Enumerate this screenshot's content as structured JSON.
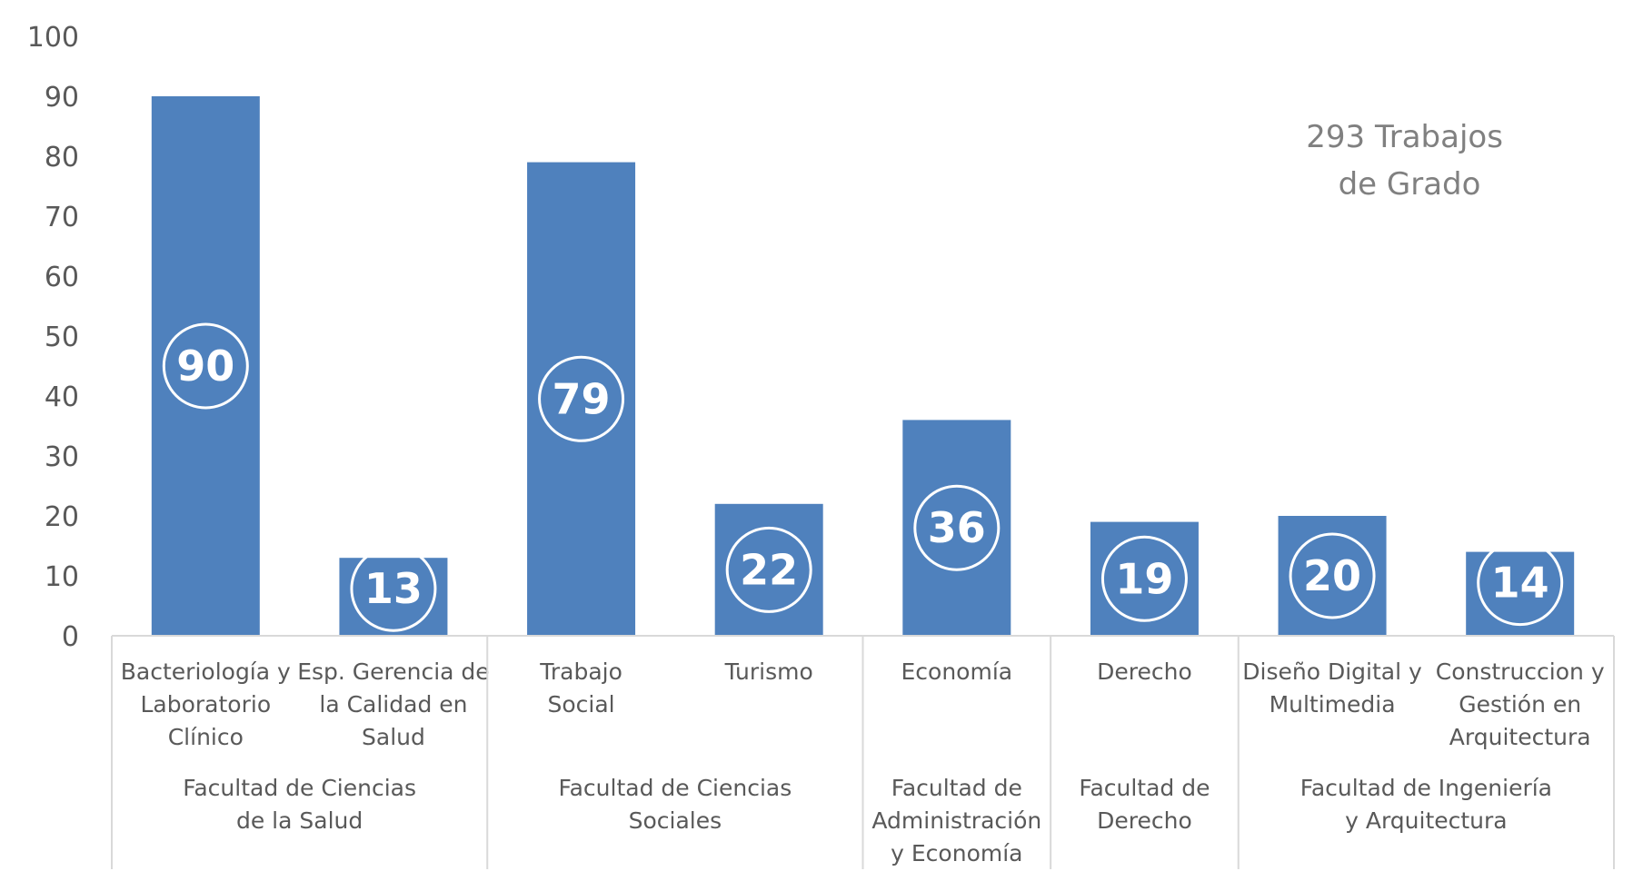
{
  "chart_data": {
    "type": "bar",
    "categories": [
      [
        "Bacteriología y",
        "Laboratorio",
        "Clínico"
      ],
      [
        "Esp. Gerencia de",
        "la Calidad en",
        "Salud"
      ],
      [
        "Trabajo",
        "Social"
      ],
      [
        "Turismo"
      ],
      [
        "Economía"
      ],
      [
        "Derecho"
      ],
      [
        "Diseño Digital y",
        "Multimedia"
      ],
      [
        "Construccion y",
        "Gestión en",
        "Arquitectura"
      ]
    ],
    "groups": [
      {
        "lines": [
          "Facultad de Ciencias",
          "de la Salud"
        ],
        "span": 2
      },
      {
        "lines": [
          "Facultad de  Ciencias",
          "Sociales"
        ],
        "span": 2
      },
      {
        "lines": [
          "Facultad de",
          "Administración",
          "y Economía"
        ],
        "span": 1
      },
      {
        "lines": [
          "Facultad de",
          "Derecho"
        ],
        "span": 1
      },
      {
        "lines": [
          "Facultad de Ingeniería",
          "y Arquitectura"
        ],
        "span": 2
      }
    ],
    "values": [
      90,
      13,
      79,
      22,
      36,
      19,
      20,
      14
    ],
    "data_labels": [
      "90",
      "13",
      "79",
      "22",
      "36",
      "19",
      "20",
      "14"
    ],
    "ylim": [
      0,
      100
    ],
    "yticks": [
      0,
      10,
      20,
      30,
      40,
      50,
      60,
      70,
      80,
      90,
      100
    ],
    "ytick_labels": [
      "0",
      "10",
      "20",
      "30",
      "40",
      "50",
      "60",
      "70",
      "80",
      "90",
      "100"
    ],
    "annotation": [
      "293 Trabajos",
      "de Grado"
    ],
    "title": "",
    "xlabel": "",
    "ylabel": "",
    "grid": false,
    "legend": "none"
  },
  "colors": {
    "bar": "#4F81BD",
    "axis": "#D9D9D9",
    "text": "#595959",
    "annotation": "#808080",
    "label_circle": "#FFFFFF"
  }
}
